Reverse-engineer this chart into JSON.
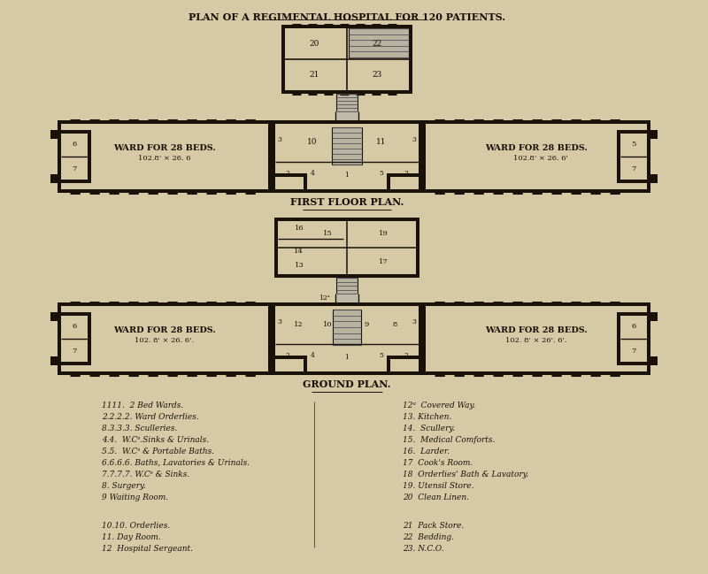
{
  "title": "PLAN OF A REGIMENTAL HOSPITAL FOR 120 PATIENTS.",
  "bg_color": "#d6c9a5",
  "line_color": "#1a1209",
  "wall_color": "#1a1209",
  "text_color": "#1a1209",
  "first_floor_label": "FIRST FLOOR PLAN.",
  "ground_plan_label": "GROUND PLAN.",
  "left_ward_label1": "WARD FOR 28 BEDS.",
  "left_ward_label2": "102.8' × 26. 6",
  "right_ward_label1": "WARD FOR 28 BEDS.",
  "right_ward_label2": "102.8' × 26. 6'",
  "left_ward_label1g": "WARD FOR 28 BEDS.",
  "left_ward_label2g": "102. 8' × 26. 6'.",
  "right_ward_label1g": "WARD FOR 28 BEDS.",
  "right_ward_label2g": "102. 8' × 26'. 6'.",
  "legend_left": [
    "1111.  2 Bed Wards.",
    "2.2.2.2. Ward Orderlies.",
    "8.3.3.3. Sculleries.",
    "4.4.  W.Cˢ.Sinks & Urinals.",
    "5.5.  W.Cˢ & Portable Baths.",
    "6.6.6.6. Baths, Lavatories & Urinals.",
    "7.7.7.7. W.Cˢ & Sinks.",
    "8. Surgery.",
    "9 Waiting Room.",
    "",
    "10.10. Orderlies.",
    "11. Day Room.",
    "12  Hospital Sergeant."
  ],
  "legend_right": [
    "12ᵃ  Covered Way.",
    "13. Kitchen.",
    "14.  Scullery.",
    "15.  Medical Comforts.",
    "16.  Larder.",
    "17  Cook's Room.",
    "18  Orderlies' Bath & Lavatory.",
    "19. Utensil Store.",
    "20  Clean Linen.",
    "",
    "21  Pack Store.",
    "22  Bedding.",
    "23. N.C.O."
  ]
}
